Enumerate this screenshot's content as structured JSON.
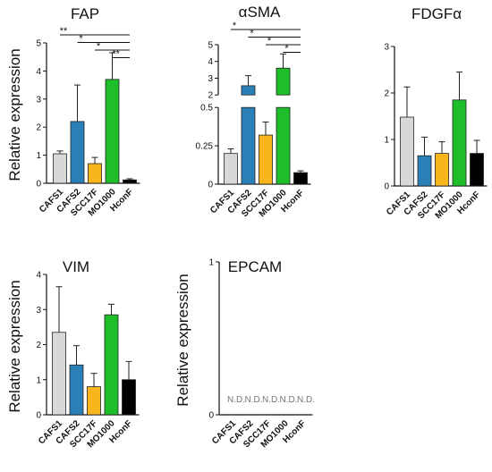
{
  "colors": {
    "CAFS1": "#d6d9d8",
    "CAFS2": "#2a7fb7",
    "SCC17F": "#f9b51c",
    "MO1000": "#1ebd2a",
    "HconF": "#000000"
  },
  "chart_data": [
    {
      "type": "bar",
      "title": "FAP",
      "ylabel": "Relative expression",
      "categories": [
        "CAFS1",
        "CAFS2",
        "SCC17F",
        "MO1000",
        "HconF"
      ],
      "values": [
        1.05,
        2.2,
        0.7,
        3.7,
        0.12
      ],
      "errors": [
        0.1,
        1.3,
        0.22,
        0.95,
        0.04
      ],
      "ylim": [
        0,
        5
      ],
      "yticks": [
        0,
        1,
        2,
        3,
        4,
        5
      ],
      "ytick_labels": [
        "0",
        "1",
        "2",
        "3",
        "4",
        "5"
      ],
      "significance": [
        {
          "from": "CAFS1",
          "to": "HconF",
          "label": "**"
        },
        {
          "from": "CAFS2",
          "to": "HconF",
          "label": "*"
        },
        {
          "from": "SCC17F",
          "to": "HconF",
          "label": "*"
        },
        {
          "from": "MO1000",
          "to": "HconF",
          "label": "**"
        }
      ]
    },
    {
      "type": "bar",
      "title": "αSMA",
      "ylabel": "",
      "categories": [
        "CAFS1",
        "CAFS2",
        "SCC17F",
        "MO1000",
        "HconF"
      ],
      "values": [
        0.2,
        2.55,
        0.32,
        3.6,
        0.075
      ],
      "errors": [
        0.03,
        0.6,
        0.085,
        0.85,
        0.012
      ],
      "ylim": [
        0,
        5
      ],
      "axis_break": {
        "lower": [
          0,
          0.5
        ],
        "upper": [
          2,
          5
        ]
      },
      "yticks": [
        0,
        0.25,
        0.5,
        2,
        3,
        4,
        5
      ],
      "ytick_labels": [
        "0",
        "0.25",
        "0.5",
        "2",
        "3",
        "4",
        "5"
      ],
      "significance": [
        {
          "from": "CAFS1",
          "to": "HconF",
          "label": "*"
        },
        {
          "from": "CAFS2",
          "to": "HconF",
          "label": "*"
        },
        {
          "from": "SCC17F",
          "to": "HconF",
          "label": "*"
        },
        {
          "from": "MO1000",
          "to": "HconF",
          "label": "*"
        }
      ]
    },
    {
      "type": "bar",
      "title": "FDGFα",
      "ylabel": "",
      "categories": [
        "CAFS1",
        "CAFS2",
        "SCC17F",
        "MO1000",
        "HconF"
      ],
      "values": [
        1.48,
        0.65,
        0.7,
        1.85,
        0.7
      ],
      "errors": [
        0.65,
        0.4,
        0.25,
        0.6,
        0.28
      ],
      "ylim": [
        0,
        3
      ],
      "yticks": [
        0,
        1,
        2,
        3
      ],
      "ytick_labels": [
        "0",
        "1",
        "2",
        "3"
      ],
      "significance": []
    },
    {
      "type": "bar",
      "title": "VIM",
      "ylabel": "Relative expression",
      "categories": [
        "CAFS1",
        "CAFS2",
        "SCC17F",
        "MO1000",
        "HconF"
      ],
      "values": [
        2.35,
        1.42,
        0.8,
        2.85,
        1.0
      ],
      "errors": [
        1.3,
        0.55,
        0.38,
        0.3,
        0.52
      ],
      "ylim": [
        0,
        4
      ],
      "yticks": [
        0,
        1,
        2,
        3,
        4
      ],
      "ytick_labels": [
        "0",
        "1",
        "2",
        "3",
        "4"
      ],
      "significance": []
    },
    {
      "type": "bar",
      "title": "EPCAM",
      "ylabel": "Relative expression",
      "categories": [
        "CAFS1",
        "CAFS2",
        "SCC17F",
        "MO1000",
        "HconF"
      ],
      "values": [
        0,
        0,
        0,
        0,
        0
      ],
      "errors": [
        0,
        0,
        0,
        0,
        0
      ],
      "value_labels": [
        "N.D.",
        "N.D.",
        "N.D.",
        "N.D.",
        "N.D."
      ],
      "ylim": [
        0,
        1
      ],
      "yticks": [
        0,
        1
      ],
      "ytick_labels": [
        "0",
        "1"
      ],
      "significance": []
    }
  ]
}
